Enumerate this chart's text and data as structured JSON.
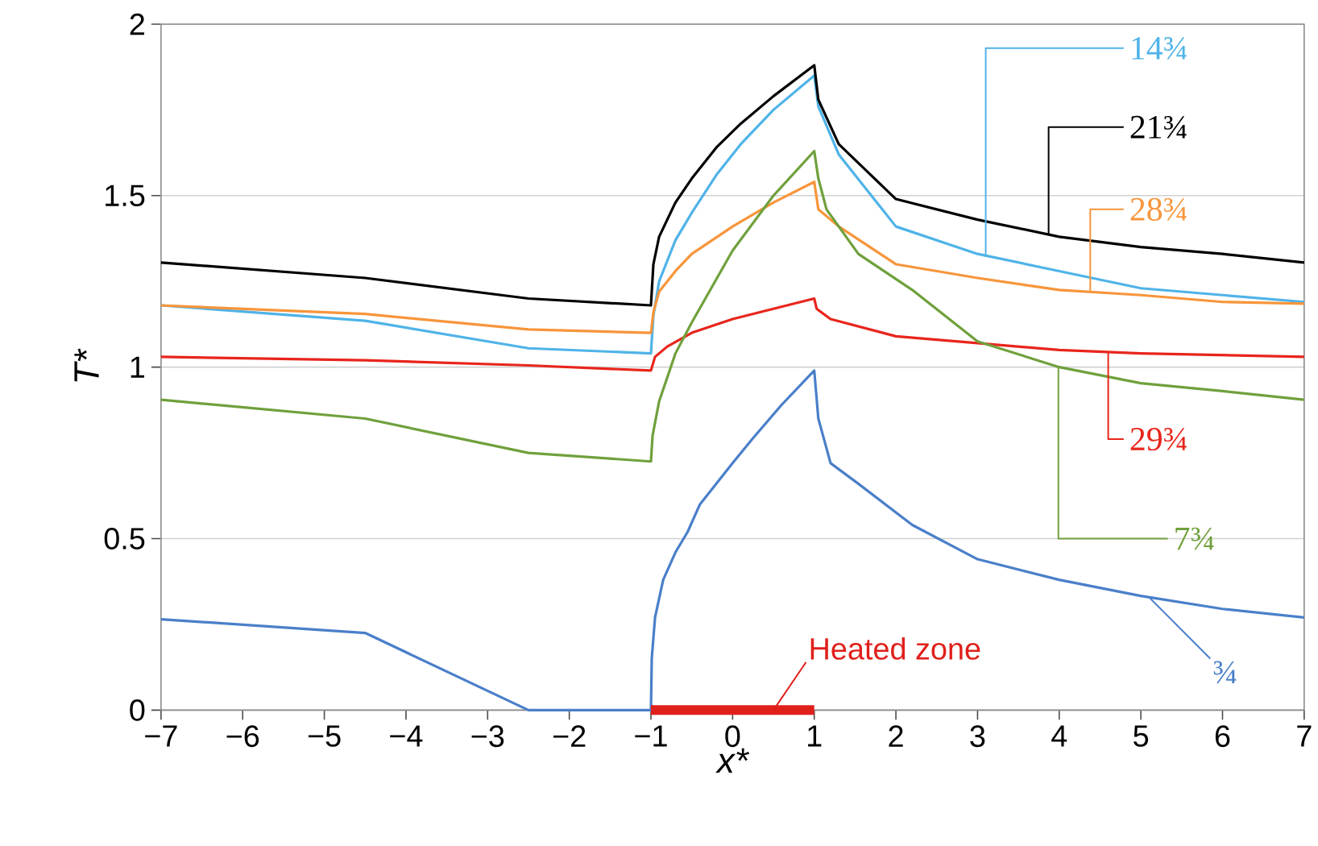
{
  "chart_data": {
    "type": "line",
    "xlabel": "x*",
    "ylabel": "T*",
    "xlim": [
      -7,
      7
    ],
    "ylim": [
      0,
      2
    ],
    "xticks": [
      {
        "value": -7,
        "label": "−7"
      },
      {
        "value": -6,
        "label": "−6"
      },
      {
        "value": -5,
        "label": "−5"
      },
      {
        "value": -4,
        "label": "−4"
      },
      {
        "value": -3,
        "label": "−3"
      },
      {
        "value": -2,
        "label": "−2"
      },
      {
        "value": -1,
        "label": "−1"
      },
      0,
      1,
      2,
      3,
      4,
      5,
      6,
      7
    ],
    "yticks": [
      0,
      0.5,
      1,
      1.5,
      2
    ],
    "grid": "y",
    "marker": "none",
    "line_style": "solid",
    "series": [
      {
        "name": "14¾",
        "color": "#4fb3e8",
        "x": [
          -7,
          -4.5,
          -2.5,
          -1,
          -0.97,
          -0.9,
          -0.7,
          -0.5,
          -0.2,
          0.1,
          0.5,
          1,
          1.05,
          1.3,
          2,
          3,
          4,
          5,
          6,
          7
        ],
        "values": [
          1.18,
          1.135,
          1.055,
          1.04,
          1.15,
          1.25,
          1.37,
          1.45,
          1.56,
          1.65,
          1.75,
          1.85,
          1.76,
          1.62,
          1.41,
          1.33,
          1.28,
          1.23,
          1.21,
          1.19
        ]
      },
      {
        "name": "21¾",
        "color": "#000000",
        "x": [
          -7,
          -4.5,
          -2.5,
          -1,
          -0.97,
          -0.9,
          -0.7,
          -0.5,
          -0.2,
          0.1,
          0.5,
          1,
          1.05,
          1.3,
          2,
          3,
          4,
          5,
          6,
          7
        ],
        "values": [
          1.305,
          1.26,
          1.2,
          1.18,
          1.3,
          1.38,
          1.48,
          1.55,
          1.64,
          1.71,
          1.79,
          1.88,
          1.78,
          1.65,
          1.49,
          1.43,
          1.38,
          1.35,
          1.33,
          1.305
        ]
      },
      {
        "name": "28¾",
        "color": "#f7953b",
        "x": [
          -7,
          -4.5,
          -2.5,
          -1,
          -0.97,
          -0.9,
          -0.7,
          -0.5,
          0,
          0.5,
          1,
          1.05,
          1.3,
          2,
          3,
          4,
          5,
          6,
          7
        ],
        "values": [
          1.18,
          1.155,
          1.11,
          1.1,
          1.16,
          1.22,
          1.28,
          1.33,
          1.41,
          1.48,
          1.54,
          1.46,
          1.41,
          1.3,
          1.26,
          1.225,
          1.21,
          1.19,
          1.185
        ]
      },
      {
        "name": "29¾",
        "color": "#e8251c",
        "x": [
          -7,
          -4.5,
          -2.5,
          -1,
          -0.95,
          -0.8,
          -0.5,
          0,
          0.5,
          1,
          1.03,
          1.2,
          2,
          3,
          4,
          5,
          7
        ],
        "values": [
          1.03,
          1.02,
          1.005,
          0.99,
          1.03,
          1.06,
          1.1,
          1.14,
          1.17,
          1.2,
          1.17,
          1.14,
          1.09,
          1.07,
          1.05,
          1.04,
          1.03
        ]
      },
      {
        "name": "7¾",
        "color": "#70a03c",
        "x": [
          -7,
          -4.5,
          -2.5,
          -1,
          -0.98,
          -0.9,
          -0.7,
          -0.5,
          0,
          0.5,
          1,
          1.05,
          1.15,
          1.54,
          2.2,
          3,
          4,
          5,
          6,
          7
        ],
        "values": [
          0.905,
          0.85,
          0.75,
          0.725,
          0.8,
          0.9,
          1.04,
          1.13,
          1.34,
          1.5,
          1.63,
          1.55,
          1.46,
          1.33,
          1.225,
          1.075,
          1.0,
          0.953,
          0.93,
          0.905
        ]
      },
      {
        "name": "¾",
        "color": "#4a7fc9",
        "x": [
          -7,
          -4.5,
          -2.5,
          -1,
          -0.99,
          -0.95,
          -0.85,
          -0.7,
          -0.55,
          -0.4,
          0,
          0.24,
          0.6,
          1,
          1.05,
          1.2,
          1.54,
          2.2,
          3,
          4,
          5,
          6,
          7
        ],
        "values": [
          0.265,
          0.225,
          0,
          0,
          0.15,
          0.27,
          0.38,
          0.46,
          0.52,
          0.6,
          0.72,
          0.79,
          0.89,
          0.99,
          0.85,
          0.72,
          0.66,
          0.54,
          0.44,
          0.38,
          0.333,
          0.295,
          0.27
        ]
      },
      {
        "name": "Heated zone",
        "color": "#e0201b",
        "x": [
          -1,
          1
        ],
        "values": [
          0,
          0
        ]
      }
    ]
  }
}
